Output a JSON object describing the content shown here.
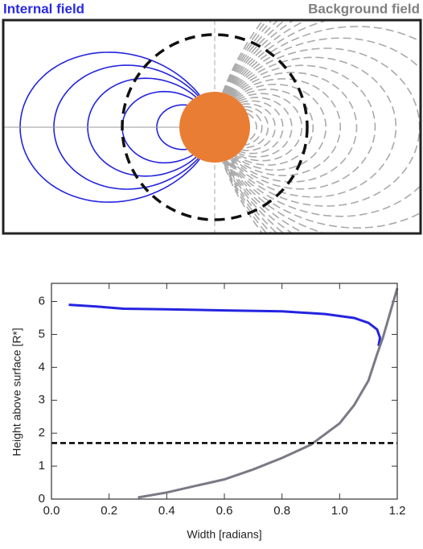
{
  "diagram": {
    "internal_label": "Internal field",
    "background_label": "Background field"
  },
  "chart_data": {
    "type": "line",
    "x_label": "Width [radians]",
    "y_label": "Height above surface [R*]",
    "xlim": [
      0,
      1.2
    ],
    "ylim": [
      0,
      6.55
    ],
    "xticks": [
      {
        "value": 0,
        "label": "0.0"
      },
      0.2,
      0.4,
      0.6,
      0.8,
      {
        "value": 1,
        "label": "1.0"
      },
      1.2
    ],
    "yticks": [
      0,
      1,
      2,
      3,
      4,
      5,
      6
    ],
    "series": [
      {
        "color": "#2424e0",
        "dash": "solid",
        "x": [
          0.06,
          0.15,
          0.25,
          0.4,
          0.6,
          0.8,
          0.95,
          1.05,
          1.1,
          1.13,
          1.14,
          1.135
        ],
        "values": [
          5.9,
          5.85,
          5.78,
          5.76,
          5.73,
          5.7,
          5.62,
          5.5,
          5.35,
          5.15,
          4.9,
          4.65
        ]
      },
      {
        "color": "#7a7a86",
        "dash": "solid",
        "x": [
          0.3,
          0.4,
          0.5,
          0.6,
          0.7,
          0.8,
          0.9,
          1.0,
          1.05,
          1.1,
          1.13,
          1.15,
          1.2
        ],
        "values": [
          0.05,
          0.2,
          0.4,
          0.6,
          0.9,
          1.25,
          1.65,
          2.3,
          2.85,
          3.6,
          4.4,
          4.9,
          6.4
        ]
      },
      {
        "color": "#000000",
        "dash": "dashed",
        "x": [
          0,
          1.2
        ],
        "values": [
          1.7,
          1.7
        ]
      }
    ]
  }
}
